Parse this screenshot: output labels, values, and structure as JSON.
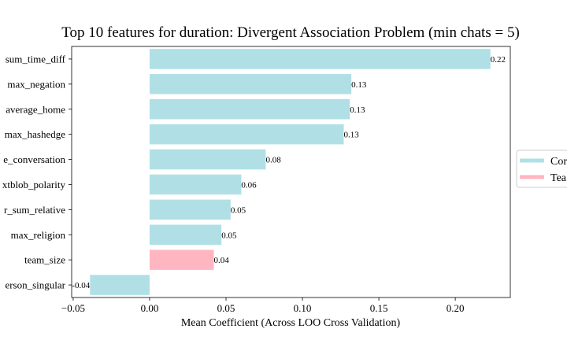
{
  "chart_data": {
    "type": "bar",
    "orientation": "horizontal",
    "title": "Top 10 features for duration: Divergent Association Problem (min chats = 5)",
    "xlabel": "Mean Coefficient (Across LOO Cross Validation)",
    "ylabel": "",
    "xlim": [
      -0.051,
      0.236
    ],
    "xticks": [
      "−0.05",
      "0.00",
      "0.05",
      "0.10",
      "0.15",
      "0.20"
    ],
    "xtick_values": [
      -0.05,
      0.0,
      0.05,
      0.1,
      0.15,
      0.2
    ],
    "grid": false,
    "legend_position": "right",
    "categories": [
      "sum_time_diff",
      "max_negation",
      "average_home",
      "max_hashedge",
      "e_conversation",
      "xtblob_polarity",
      "r_sum_relative",
      "max_religion",
      "team_size",
      "erson_singular"
    ],
    "values": [
      0.223,
      0.132,
      0.131,
      0.127,
      0.076,
      0.06,
      0.053,
      0.047,
      0.042,
      -0.039
    ],
    "value_labels": [
      "0.22",
      "0.13",
      "0.13",
      "0.13",
      "0.08",
      "0.06",
      "0.05",
      "0.05",
      "0.04",
      "-0.04"
    ],
    "groups": [
      "Co",
      "Co",
      "Co",
      "Co",
      "Co",
      "Co",
      "Co",
      "Co",
      "Te",
      "Co"
    ],
    "legend": [
      {
        "key": "Co",
        "label": "Cor",
        "color": "#b0e0e6"
      },
      {
        "key": "Te",
        "label": "Tea",
        "color": "#ffb6c1"
      }
    ]
  }
}
